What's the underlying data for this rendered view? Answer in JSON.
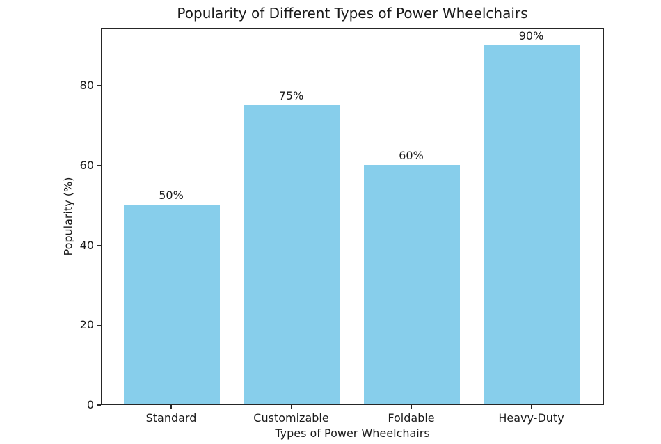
{
  "chart_data": {
    "type": "bar",
    "title": "Popularity of Different Types of Power Wheelchairs",
    "xlabel": "Types of Power Wheelchairs",
    "ylabel": "Popularity (%)",
    "categories": [
      "Standard",
      "Customizable",
      "Foldable",
      "Heavy-Duty"
    ],
    "values": [
      50,
      75,
      60,
      90
    ],
    "bar_labels": [
      "50%",
      "75%",
      "60%",
      "90%"
    ],
    "yticks": [
      0,
      20,
      40,
      60,
      80
    ],
    "ylim": [
      0,
      94.5
    ],
    "bar_color": "#87CEEB",
    "grid": false,
    "legend": "none"
  }
}
